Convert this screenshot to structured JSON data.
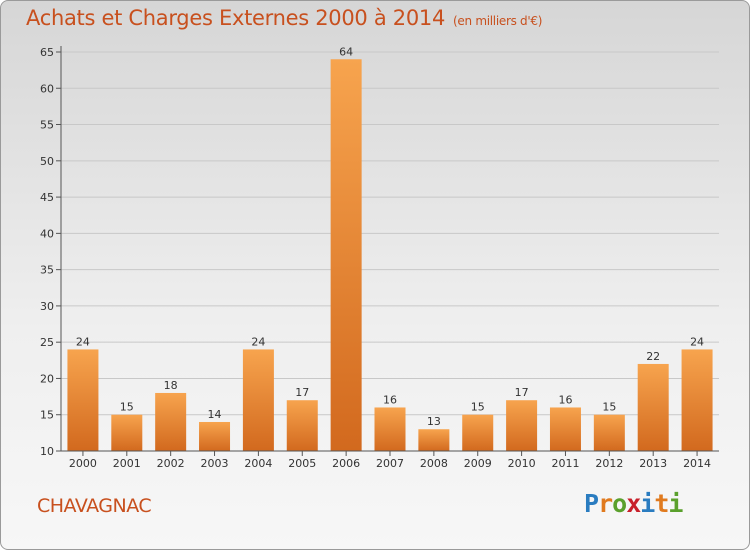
{
  "header": {
    "title": "Achats et Charges Externes 2000 à 2014",
    "unit": "(en milliers d'€)"
  },
  "commune": "CHAVAGNAC",
  "logo": {
    "text": "Proxiti",
    "letters": [
      "P",
      "r",
      "o",
      "x",
      "i",
      "t",
      "i"
    ],
    "colors": [
      "#2a7cc0",
      "#e07a1e",
      "#5aa02c",
      "#c8202a",
      "#2a7cc0",
      "#e07a1e",
      "#5aa02c"
    ]
  },
  "chart_data": {
    "type": "bar",
    "title": "Achats et Charges Externes 2000 à 2014",
    "subtitle": "(en milliers d'€)",
    "categories": [
      "2000",
      "2001",
      "2002",
      "2003",
      "2004",
      "2005",
      "2006",
      "2007",
      "2008",
      "2009",
      "2010",
      "2011",
      "2012",
      "2013",
      "2014"
    ],
    "values": [
      24,
      15,
      18,
      14,
      24,
      17,
      64,
      16,
      13,
      15,
      17,
      16,
      15,
      22,
      24
    ],
    "ylim": [
      10,
      65
    ],
    "yticks": [
      10,
      15,
      20,
      25,
      30,
      35,
      40,
      45,
      50,
      55,
      60,
      65
    ],
    "grid": true,
    "bar_color_top": "#f7a44e",
    "bar_color_bottom": "#d2691e",
    "title_color": "#c8501e"
  }
}
